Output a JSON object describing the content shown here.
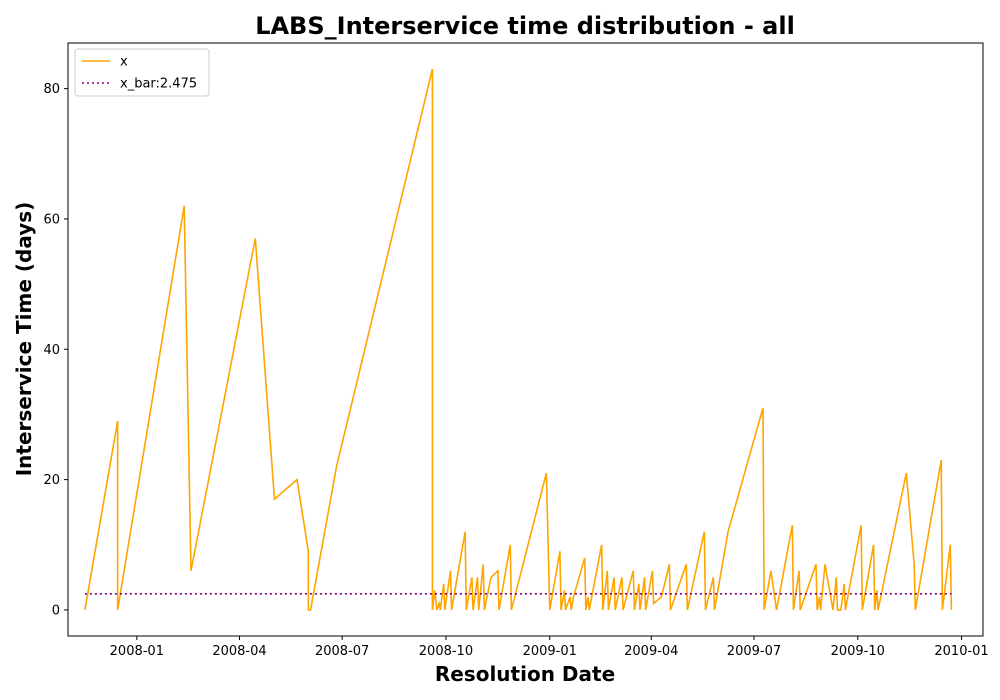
{
  "chart_data": {
    "type": "line",
    "title": "LABS_Interservice time distribution - all",
    "xlabel": "Resolution Date",
    "ylabel": "Interservice Time (days)",
    "xlim": [
      "2007-11-01",
      "2010-01-20"
    ],
    "ylim": [
      -4,
      87
    ],
    "yticks": [
      0,
      20,
      40,
      60,
      80
    ],
    "xticks": [
      {
        "date": "2008-01-01",
        "label": "2008-01"
      },
      {
        "date": "2008-04-01",
        "label": "2008-04"
      },
      {
        "date": "2008-07-01",
        "label": "2008-07"
      },
      {
        "date": "2008-10-01",
        "label": "2008-10"
      },
      {
        "date": "2009-01-01",
        "label": "2009-01"
      },
      {
        "date": "2009-04-01",
        "label": "2009-04"
      },
      {
        "date": "2009-07-01",
        "label": "2009-07"
      },
      {
        "date": "2009-10-01",
        "label": "2009-10"
      },
      {
        "date": "2010-01-01",
        "label": "2010-01"
      }
    ],
    "grid": false,
    "legend_position": "top-left",
    "series": [
      {
        "name": "x",
        "color": "#ffa500",
        "style": "solid",
        "points": [
          [
            "2007-11-16",
            0
          ],
          [
            "2007-12-15",
            29
          ],
          [
            "2007-12-15",
            0
          ],
          [
            "2008-02-12",
            62
          ],
          [
            "2008-02-18",
            6
          ],
          [
            "2008-04-15",
            57
          ],
          [
            "2008-05-02",
            17
          ],
          [
            "2008-05-22",
            20
          ],
          [
            "2008-06-01",
            9
          ],
          [
            "2008-06-01",
            0
          ],
          [
            "2008-06-03",
            0
          ],
          [
            "2008-06-26",
            22
          ],
          [
            "2008-09-19",
            83
          ],
          [
            "2008-09-19",
            0
          ],
          [
            "2008-09-21",
            3
          ],
          [
            "2008-09-23",
            0
          ],
          [
            "2008-09-25",
            1
          ],
          [
            "2008-09-26",
            0
          ],
          [
            "2008-09-29",
            4
          ],
          [
            "2008-09-30",
            0
          ],
          [
            "2008-10-05",
            6
          ],
          [
            "2008-10-06",
            0
          ],
          [
            "2008-10-18",
            12
          ],
          [
            "2008-10-19",
            0
          ],
          [
            "2008-10-24",
            5
          ],
          [
            "2008-10-25",
            0
          ],
          [
            "2008-10-29",
            5
          ],
          [
            "2008-10-30",
            0
          ],
          [
            "2008-11-03",
            7
          ],
          [
            "2008-11-04",
            0
          ],
          [
            "2008-11-10",
            5
          ],
          [
            "2008-11-16",
            6
          ],
          [
            "2008-11-17",
            0
          ],
          [
            "2008-11-27",
            10
          ],
          [
            "2008-11-28",
            0
          ],
          [
            "2008-12-29",
            21
          ],
          [
            "2009-01-01",
            0
          ],
          [
            "2009-01-10",
            9
          ],
          [
            "2009-01-11",
            0
          ],
          [
            "2009-01-14",
            3
          ],
          [
            "2009-01-15",
            0
          ],
          [
            "2009-01-19",
            2
          ],
          [
            "2009-01-20",
            0
          ],
          [
            "2009-01-22",
            2
          ],
          [
            "2009-02-01",
            8
          ],
          [
            "2009-02-02",
            0
          ],
          [
            "2009-02-04",
            2
          ],
          [
            "2009-02-05",
            0
          ],
          [
            "2009-02-16",
            10
          ],
          [
            "2009-02-17",
            0
          ],
          [
            "2009-02-21",
            6
          ],
          [
            "2009-02-22",
            0
          ],
          [
            "2009-02-27",
            5
          ],
          [
            "2009-02-28",
            0
          ],
          [
            "2009-03-06",
            5
          ],
          [
            "2009-03-07",
            0
          ],
          [
            "2009-03-16",
            6
          ],
          [
            "2009-03-17",
            0
          ],
          [
            "2009-03-21",
            4
          ],
          [
            "2009-03-22",
            0
          ],
          [
            "2009-03-26",
            5
          ],
          [
            "2009-03-27",
            0
          ],
          [
            "2009-04-02",
            6
          ],
          [
            "2009-04-03",
            1
          ],
          [
            "2009-04-10",
            2
          ],
          [
            "2009-04-17",
            7
          ],
          [
            "2009-04-18",
            0
          ],
          [
            "2009-05-02",
            7
          ],
          [
            "2009-05-03",
            0
          ],
          [
            "2009-05-18",
            12
          ],
          [
            "2009-05-19",
            0
          ],
          [
            "2009-05-26",
            5
          ],
          [
            "2009-05-27",
            0
          ],
          [
            "2009-06-08",
            12
          ],
          [
            "2009-07-09",
            31
          ],
          [
            "2009-07-10",
            0
          ],
          [
            "2009-07-16",
            6
          ],
          [
            "2009-07-21",
            0
          ],
          [
            "2009-08-04",
            13
          ],
          [
            "2009-08-05",
            0
          ],
          [
            "2009-08-10",
            6
          ],
          [
            "2009-08-11",
            0
          ],
          [
            "2009-08-25",
            7
          ],
          [
            "2009-08-26",
            0
          ],
          [
            "2009-08-28",
            2
          ],
          [
            "2009-08-29",
            0
          ],
          [
            "2009-09-02",
            7
          ],
          [
            "2009-09-09",
            0
          ],
          [
            "2009-09-12",
            5
          ],
          [
            "2009-09-13",
            0
          ],
          [
            "2009-09-16",
            0
          ],
          [
            "2009-09-19",
            4
          ],
          [
            "2009-09-20",
            0
          ],
          [
            "2009-10-04",
            13
          ],
          [
            "2009-10-05",
            0
          ],
          [
            "2009-10-15",
            10
          ],
          [
            "2009-10-16",
            0
          ],
          [
            "2009-10-18",
            3
          ],
          [
            "2009-10-19",
            0
          ],
          [
            "2009-11-13",
            21
          ],
          [
            "2009-11-20",
            7
          ],
          [
            "2009-11-21",
            0
          ],
          [
            "2009-12-14",
            23
          ],
          [
            "2009-12-15",
            0
          ],
          [
            "2009-12-22",
            10
          ],
          [
            "2009-12-23",
            0
          ]
        ]
      },
      {
        "name": "x_bar:2.475",
        "color": "#800080",
        "style": "dotted",
        "points": [
          [
            "2007-11-16",
            2.475
          ],
          [
            "2009-12-23",
            2.475
          ]
        ]
      }
    ]
  }
}
